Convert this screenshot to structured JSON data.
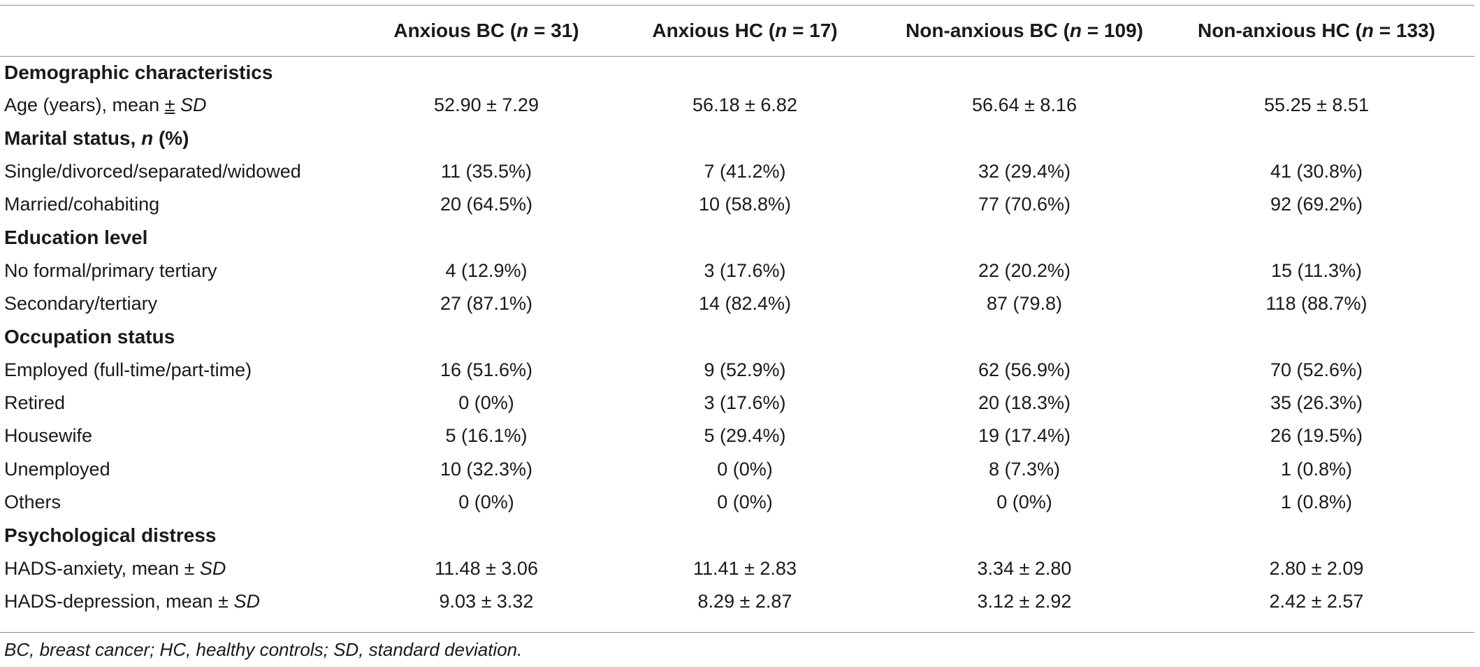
{
  "header": {
    "col1": {
      "label": "Anxious BC (",
      "n": "n",
      "rest": " = 31)"
    },
    "col2": {
      "label": "Anxious HC (",
      "n": "n",
      "rest": " = 17)"
    },
    "col3": {
      "label": "Non-anxious BC (",
      "n": "n",
      "rest": " = 109)"
    },
    "col4": {
      "label": "Non-anxious HC (",
      "n": "n",
      "rest": " = 133)"
    }
  },
  "sections": {
    "demographic": "Demographic characteristics",
    "marital": {
      "label": "Marital status, ",
      "n": "n",
      "rest": " (%)"
    },
    "education": "Education level",
    "occupation": "Occupation status",
    "psych": "Psychological distress"
  },
  "rows": {
    "age": {
      "label": "Age (years), mean ",
      "pm": "±",
      "sd": "SD",
      "v": [
        "52.90 ± 7.29",
        "56.18 ± 6.82",
        "56.64 ± 8.16",
        "55.25 ± 8.51"
      ]
    },
    "single": {
      "label": "Single/divorced/separated/widowed",
      "v": [
        "11 (35.5%)",
        "7 (41.2%)",
        "32 (29.4%)",
        "41 (30.8%)"
      ]
    },
    "married": {
      "label": "Married/cohabiting",
      "v": [
        "20 (64.5%)",
        "10 (58.8%)",
        "77 (70.6%)",
        "92 (69.2%)"
      ]
    },
    "noformal": {
      "label": "No formal/primary tertiary",
      "v": [
        "4 (12.9%)",
        "3 (17.6%)",
        "22 (20.2%)",
        "15 (11.3%)"
      ]
    },
    "secondary": {
      "label": "Secondary/tertiary",
      "v": [
        "27 (87.1%)",
        "14 (82.4%)",
        "87 (79.8)",
        "118 (88.7%)"
      ]
    },
    "employed": {
      "label": "Employed (full-time/part-time)",
      "v": [
        "16 (51.6%)",
        "9 (52.9%)",
        "62 (56.9%)",
        "70 (52.6%)"
      ]
    },
    "retired": {
      "label": "Retired",
      "v": [
        "0 (0%)",
        "3 (17.6%)",
        "20 (18.3%)",
        "35 (26.3%)"
      ]
    },
    "housewife": {
      "label": "Housewife",
      "v": [
        "5 (16.1%)",
        "5 (29.4%)",
        "19 (17.4%)",
        "26 (19.5%)"
      ]
    },
    "unemployed": {
      "label": "Unemployed",
      "v": [
        "10 (32.3%)",
        "0 (0%)",
        "8 (7.3%)",
        "1 (0.8%)"
      ]
    },
    "others": {
      "label": "Others",
      "v": [
        "0 (0%)",
        "0 (0%)",
        "0 (0%)",
        "1 (0.8%)"
      ]
    },
    "hads_anx": {
      "label": "HADS-anxiety, mean ± ",
      "sd": "SD",
      "v": [
        "11.48 ± 3.06",
        "11.41 ± 2.83",
        "3.34 ± 2.80",
        "2.80 ± 2.09"
      ]
    },
    "hads_dep": {
      "label": "HADS-depression, mean ± ",
      "sd": "SD",
      "v": [
        "9.03 ± 3.32",
        "8.29 ± 2.87",
        "3.12 ± 2.92",
        "2.42 ± 2.57"
      ]
    }
  },
  "footnote": "BC, breast cancer; HC, healthy controls; SD, standard deviation."
}
